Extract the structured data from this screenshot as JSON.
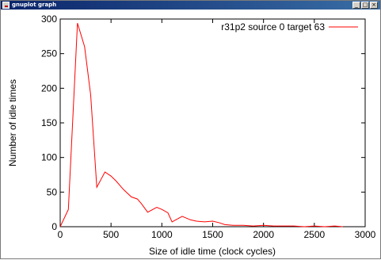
{
  "window": {
    "title": "gnuplot graph",
    "minimize_glyph": "_",
    "maximize_glyph": "□",
    "close_glyph": "×"
  },
  "chart_data": {
    "type": "line",
    "title": "",
    "xlabel": "Size of idle time (clock cycles)",
    "ylabel": "Number of idle times",
    "xlim": [
      0,
      3000
    ],
    "ylim": [
      0,
      300
    ],
    "xticks": [
      0,
      500,
      1000,
      1500,
      2000,
      2500,
      3000
    ],
    "yticks": [
      0,
      50,
      100,
      150,
      200,
      250,
      300
    ],
    "grid": false,
    "legend_position": "top-right",
    "series": [
      {
        "name": "r31p2 source 0 target 63",
        "color": "#ff0000",
        "x": [
          0,
          80,
          170,
          240,
          300,
          360,
          440,
          500,
          550,
          620,
          700,
          760,
          800,
          860,
          950,
          1000,
          1060,
          1100,
          1200,
          1280,
          1340,
          1420,
          1500,
          1560,
          1620,
          1700,
          1800,
          1900,
          2000,
          2100,
          2200,
          2300,
          2400,
          2500,
          2600,
          2700,
          2780
        ],
        "y": [
          0,
          25,
          294,
          260,
          190,
          57,
          79,
          73,
          66,
          54,
          43,
          40,
          33,
          21,
          28,
          25,
          20,
          7,
          15,
          10,
          8,
          7,
          8,
          6,
          3,
          2,
          2,
          1,
          2,
          1,
          1,
          1,
          0,
          1,
          0,
          1,
          0
        ]
      }
    ]
  }
}
